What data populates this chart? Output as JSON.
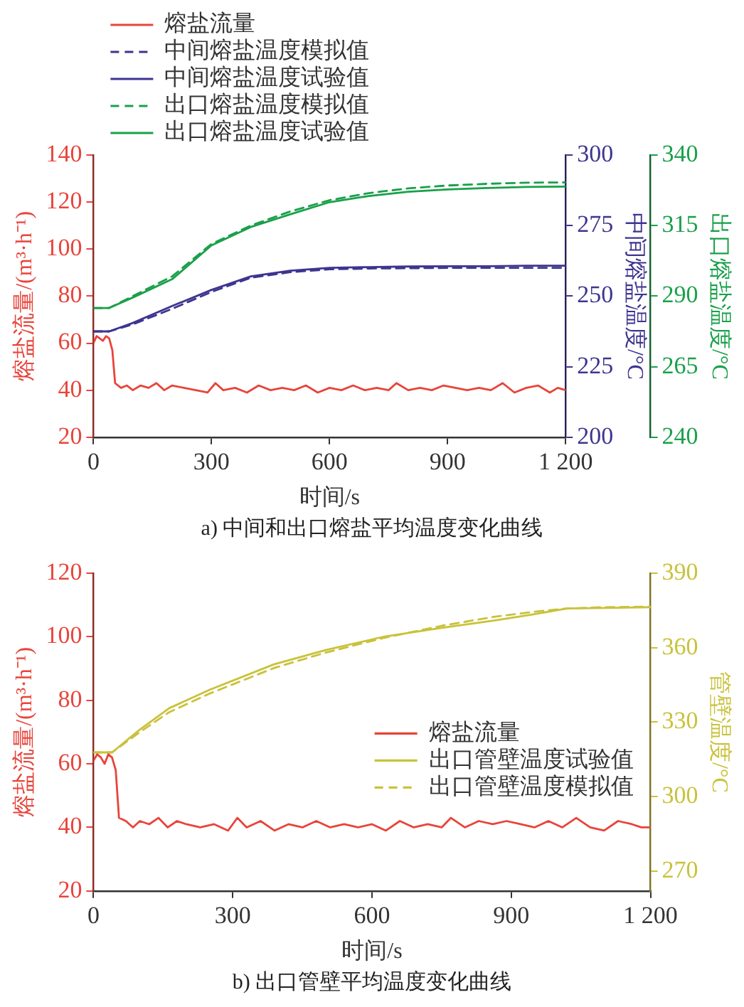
{
  "chart_data": [
    {
      "type": "line",
      "title": "a) 中间和出口熔盐平均温度变化曲线",
      "xlabel": "时间/s",
      "ylabel": "熔盐流量/(m³·h⁻¹)",
      "y2label": "中间熔盐温度/°C",
      "y3label": "出口熔盐温度/°C",
      "xlim": [
        0,
        1200
      ],
      "xticks": [
        0,
        300,
        600,
        900,
        {
          "value": 1200,
          "label": "1 200"
        }
      ],
      "ylim": [
        20,
        140
      ],
      "yticks": [
        20,
        40,
        60,
        80,
        100,
        120,
        140
      ],
      "y2lim": [
        200,
        300
      ],
      "y2ticks": [
        200,
        225,
        250,
        275,
        300
      ],
      "y3lim": [
        240,
        340
      ],
      "y3ticks": [
        240,
        265,
        290,
        315,
        340
      ],
      "grid": false,
      "legend": "top left",
      "marker": "none",
      "series": [
        {
          "name": "熔盐流量",
          "color": "#e8443a",
          "line_style": "solid",
          "x": [
            0,
            8,
            16,
            24,
            32,
            40,
            48,
            55,
            70,
            85,
            100,
            120,
            140,
            160,
            180,
            200,
            230,
            260,
            290,
            310,
            330,
            360,
            390,
            420,
            450,
            480,
            510,
            540,
            570,
            600,
            630,
            660,
            690,
            720,
            750,
            770,
            800,
            830,
            860,
            890,
            920,
            950,
            980,
            1010,
            1040,
            1070,
            1100,
            1130,
            1160,
            1180,
            1200
          ],
          "values": [
            60,
            63,
            62,
            61,
            63,
            62,
            57,
            43,
            41,
            42,
            40,
            42,
            41,
            43,
            40,
            42,
            41,
            40,
            39,
            43,
            40,
            41,
            39,
            42,
            40,
            41,
            40,
            42,
            39,
            41,
            40,
            42,
            40,
            41,
            40,
            43,
            40,
            41,
            40,
            42,
            41,
            40,
            41,
            40,
            43,
            39,
            41,
            42,
            39,
            41,
            40
          ]
        },
        {
          "name": "中间熔盐温度模拟值",
          "color": "#3d3590",
          "line_style": "dashed",
          "axis": "y2",
          "x": [
            0,
            40,
            100,
            200,
            300,
            400,
            500,
            600,
            700,
            800,
            900,
            1000,
            1100,
            1200
          ],
          "values": [
            237.5,
            237.5,
            240,
            245.5,
            251.5,
            256.5,
            258.5,
            259.5,
            259.8,
            259.9,
            260,
            260,
            260,
            260
          ]
        },
        {
          "name": "中间熔盐温度试验值",
          "color": "#3d3590",
          "line_style": "solid",
          "axis": "y2",
          "x": [
            0,
            40,
            100,
            200,
            300,
            400,
            500,
            600,
            700,
            800,
            900,
            1000,
            1100,
            1200
          ],
          "values": [
            237.5,
            237.5,
            240.5,
            246.5,
            252.2,
            257,
            259,
            260,
            260.3,
            260.5,
            260.6,
            260.6,
            260.8,
            260.8
          ]
        },
        {
          "name": "出口熔盐温度模拟值",
          "color": "#1aa04a",
          "line_style": "dashed",
          "axis": "y3",
          "x": [
            0,
            40,
            100,
            200,
            300,
            400,
            500,
            600,
            700,
            800,
            900,
            1000,
            1100,
            1200
          ],
          "values": [
            285.8,
            285.8,
            290,
            297,
            308.5,
            315,
            320,
            324,
            326.5,
            328.2,
            329.2,
            329.8,
            330.2,
            330.3
          ]
        },
        {
          "name": "出口熔盐温度试验值",
          "color": "#1aa04a",
          "line_style": "solid",
          "axis": "y3",
          "x": [
            0,
            40,
            100,
            200,
            300,
            400,
            500,
            600,
            700,
            800,
            900,
            1000,
            1100,
            1200
          ],
          "values": [
            285.8,
            285.8,
            289.5,
            296,
            308,
            314.5,
            319,
            323.3,
            325.5,
            327,
            327.8,
            328.3,
            328.7,
            328.8
          ]
        }
      ]
    },
    {
      "type": "line",
      "title": "b) 出口管壁平均温度变化曲线",
      "xlabel": "时间/s",
      "ylabel": "熔盐流量/(m³·h⁻¹)",
      "y2label": "管壁温度/°C",
      "xlim": [
        0,
        1200
      ],
      "xticks": [
        0,
        300,
        600,
        900,
        {
          "value": 1200,
          "label": "1 200"
        }
      ],
      "ylim": [
        20,
        120
      ],
      "yticks": [
        20,
        40,
        60,
        80,
        100,
        120
      ],
      "y2lim": [
        262,
        390
      ],
      "y2ticks": [
        270,
        300,
        330,
        360,
        390
      ],
      "grid": false,
      "legend": "center right",
      "marker": "none",
      "series": [
        {
          "name": "熔盐流量",
          "color": "#e8443a",
          "line_style": "solid",
          "x": [
            0,
            8,
            16,
            24,
            32,
            40,
            48,
            55,
            70,
            85,
            100,
            120,
            140,
            160,
            180,
            200,
            230,
            260,
            290,
            310,
            330,
            360,
            390,
            420,
            450,
            480,
            510,
            540,
            570,
            600,
            630,
            660,
            690,
            720,
            750,
            770,
            800,
            830,
            860,
            890,
            920,
            950,
            980,
            1010,
            1040,
            1070,
            1100,
            1130,
            1160,
            1180,
            1200
          ],
          "values": [
            61,
            63,
            62,
            60,
            63,
            62,
            58,
            43,
            42,
            40,
            42,
            41,
            43,
            40,
            42,
            41,
            40,
            41,
            39,
            43,
            40,
            42,
            39,
            41,
            40,
            42,
            40,
            41,
            40,
            41,
            39,
            42,
            40,
            41,
            40,
            43,
            40,
            42,
            41,
            42,
            41,
            40,
            42,
            40,
            43,
            40,
            39,
            42,
            41,
            40,
            40
          ]
        },
        {
          "name": "出口管壁温度试验值",
          "color": "#c9c23b",
          "line_style": "solid",
          "axis": "y2",
          "x": [
            0,
            40,
            100,
            163,
            250,
            389,
            500,
            627,
            750,
            865,
            950,
            1020,
            1100,
            1200
          ],
          "values": [
            317.8,
            317.8,
            327,
            335.6,
            343,
            353.3,
            359,
            364.5,
            368,
            371,
            373.5,
            375.8,
            376,
            376.3
          ]
        },
        {
          "name": "出口管壁温度模拟值",
          "color": "#c9c23b",
          "line_style": "dashed",
          "axis": "y2",
          "x": [
            0,
            40,
            100,
            163,
            250,
            389,
            500,
            627,
            750,
            865,
            950,
            1020,
            1100,
            1200
          ],
          "values": [
            317.8,
            317.8,
            326,
            334,
            341.5,
            351.8,
            358,
            364,
            368.8,
            372.5,
            374.5,
            375.8,
            376.3,
            376.5
          ]
        }
      ]
    }
  ]
}
